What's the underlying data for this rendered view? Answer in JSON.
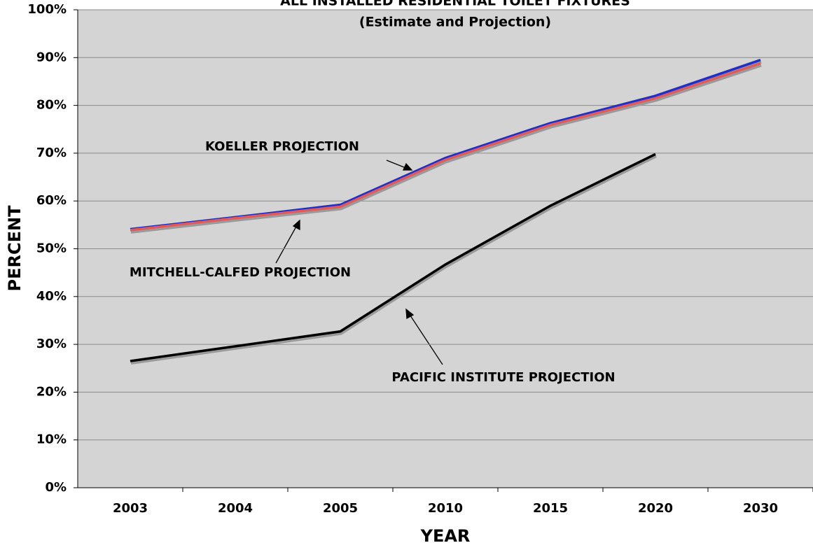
{
  "chart_data": {
    "type": "line",
    "title": "ALL INSTALLED RESIDENTIAL TOILET FIXTURES",
    "subtitle": "(Estimate and Projection)",
    "x_label": "YEAR",
    "y_label": "PERCENT",
    "categories": [
      "2003",
      "2004",
      "2005",
      "2010",
      "2015",
      "2020",
      "2030"
    ],
    "series": [
      {
        "name": "KOELLER PROJECTION",
        "color": "#1f2fc8",
        "values": [
          54.1,
          56.6,
          59.2,
          69.0,
          76.3,
          82.0,
          89.5
        ]
      },
      {
        "name": "MITCHELL-CALFED PROJECTION",
        "color": "#e05a5a",
        "values": [
          53.9,
          56.4,
          58.8,
          68.6,
          75.9,
          81.5,
          88.8
        ]
      },
      {
        "name": "PACIFIC INSTITUTE PROJECTION",
        "color": "#000000",
        "values": [
          26.5,
          29.6,
          32.7,
          46.7,
          59.0,
          69.8,
          null
        ]
      }
    ],
    "ylim": [
      0,
      100
    ],
    "yticks": [
      {
        "value": 0,
        "label": "0%"
      },
      {
        "value": 10,
        "label": "10%"
      },
      {
        "value": 20,
        "label": "20%"
      },
      {
        "value": 30,
        "label": "30%"
      },
      {
        "value": 40,
        "label": "40%"
      },
      {
        "value": 50,
        "label": "50%"
      },
      {
        "value": 60,
        "label": "60%"
      },
      {
        "value": 70,
        "label": "70%"
      },
      {
        "value": 80,
        "label": "80%"
      },
      {
        "value": 90,
        "label": "90%"
      },
      {
        "value": 100,
        "label": "100%"
      }
    ],
    "grid": true
  }
}
